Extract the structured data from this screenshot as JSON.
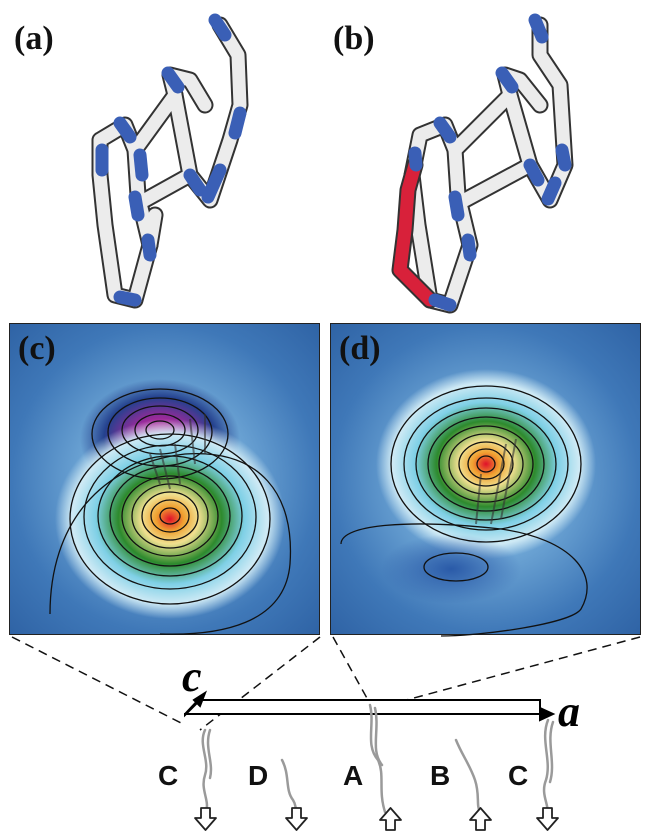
{
  "panels": {
    "a": {
      "label": "(a)"
    },
    "b": {
      "label": "(b)"
    },
    "c": {
      "label": "(c)"
    },
    "d": {
      "label": "(d)"
    }
  },
  "axes": {
    "c_label": "c",
    "a_label": "a"
  },
  "chains": [
    {
      "label": "C",
      "direction": "down"
    },
    {
      "label": "D",
      "direction": "down"
    },
    {
      "label": "A",
      "direction": "up"
    },
    {
      "label": "B",
      "direction": "up"
    },
    {
      "label": "C",
      "direction": "down"
    }
  ],
  "colors": {
    "nitrogen": "#3a5fb6",
    "carbon": "#f2f2f2",
    "highlight_bond": "#d8213a",
    "map_background": "#3f78b8"
  }
}
